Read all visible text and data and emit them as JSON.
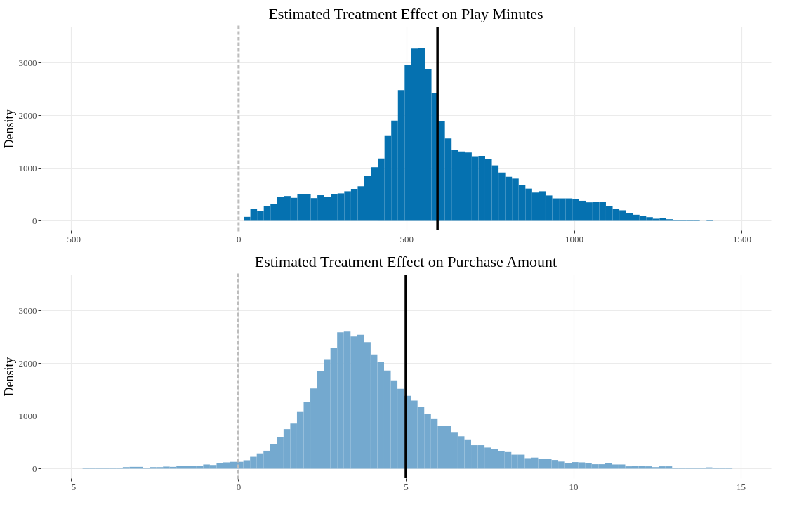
{
  "chart_data": [
    {
      "type": "histogram",
      "title": "Estimated Treatment Effect on Play Minutes",
      "ylabel": "Density",
      "color": "#0571b0",
      "bins": [
        15,
        35,
        55,
        75,
        95,
        115,
        135,
        155,
        175,
        195,
        215,
        235,
        255,
        275,
        295,
        315,
        335,
        355,
        375,
        395,
        415,
        435,
        455,
        475,
        495,
        515,
        535,
        555,
        575,
        595,
        615,
        635,
        655,
        675,
        695,
        715,
        735,
        755,
        775,
        795,
        815,
        835,
        855,
        875,
        895,
        915,
        935,
        955,
        975,
        995,
        1015,
        1035,
        1055,
        1075,
        1095,
        1115,
        1135,
        1155,
        1175,
        1195,
        1215,
        1235,
        1255,
        1275,
        1295,
        1315,
        1335,
        1355,
        1375,
        1395,
        1415
      ],
      "values": [
        75,
        220,
        185,
        275,
        320,
        450,
        470,
        435,
        510,
        510,
        430,
        485,
        455,
        500,
        520,
        560,
        605,
        655,
        850,
        1015,
        1180,
        1620,
        1900,
        2480,
        2955,
        3265,
        3280,
        2880,
        2420,
        1890,
        1560,
        1350,
        1315,
        1295,
        1225,
        1230,
        1170,
        1050,
        915,
        835,
        800,
        680,
        610,
        535,
        560,
        480,
        425,
        425,
        425,
        410,
        380,
        350,
        355,
        355,
        285,
        220,
        200,
        145,
        115,
        90,
        70,
        40,
        50,
        30,
        15,
        15,
        15,
        15,
        0,
        20
      ],
      "xlim": [
        -590,
        1587
      ],
      "xticks": [
        -500,
        0,
        500,
        1000,
        1500
      ],
      "ylim": [
        -180,
        3680
      ],
      "yticks": [
        0,
        1000,
        2000,
        3000
      ],
      "grid": true,
      "ref_lines": [
        {
          "axis": "x",
          "value": 0,
          "color": "#bdbdbd",
          "line_style": "dotted"
        },
        {
          "axis": "x",
          "value": 593,
          "color": "#000000",
          "line_style": "solid"
        }
      ]
    },
    {
      "type": "histogram",
      "title": "Estimated Treatment Effect on Purchase Amount",
      "ylabel": "Density",
      "color": "#74a9cf",
      "bins": [
        -4.65,
        -4.45,
        -4.25,
        -4.05,
        -3.85,
        -3.65,
        -3.45,
        -3.25,
        -3.05,
        -2.85,
        -2.65,
        -2.45,
        -2.25,
        -2.05,
        -1.85,
        -1.65,
        -1.45,
        -1.25,
        -1.05,
        -0.85,
        -0.65,
        -0.45,
        -0.25,
        -0.05,
        0.15,
        0.35,
        0.55,
        0.75,
        0.95,
        1.15,
        1.35,
        1.55,
        1.75,
        1.95,
        2.15,
        2.35,
        2.55,
        2.75,
        2.95,
        3.15,
        3.35,
        3.55,
        3.75,
        3.95,
        4.15,
        4.35,
        4.55,
        4.75,
        4.95,
        5.15,
        5.35,
        5.55,
        5.75,
        5.95,
        6.15,
        6.35,
        6.55,
        6.75,
        6.95,
        7.15,
        7.35,
        7.55,
        7.75,
        7.95,
        8.15,
        8.35,
        8.55,
        8.75,
        8.95,
        9.15,
        9.35,
        9.55,
        9.75,
        9.95,
        10.15,
        10.35,
        10.55,
        10.75,
        10.95,
        11.15,
        11.35,
        11.55,
        11.75,
        11.95,
        12.15,
        12.35,
        12.55,
        12.75,
        12.95,
        13.15,
        13.35,
        13.55,
        13.75,
        13.95,
        14.15,
        14.35,
        14.55,
        14.75
      ],
      "values": [
        15,
        20,
        20,
        20,
        20,
        20,
        30,
        35,
        35,
        20,
        30,
        30,
        40,
        35,
        55,
        50,
        50,
        50,
        80,
        70,
        100,
        120,
        130,
        130,
        160,
        225,
        290,
        340,
        465,
        595,
        750,
        855,
        1075,
        1260,
        1520,
        1855,
        2075,
        2290,
        2585,
        2600,
        2505,
        2540,
        2400,
        2165,
        2020,
        1860,
        1675,
        1515,
        1380,
        1290,
        1165,
        1040,
        940,
        815,
        815,
        695,
        615,
        555,
        445,
        445,
        400,
        375,
        330,
        315,
        265,
        265,
        200,
        210,
        190,
        190,
        165,
        135,
        100,
        125,
        120,
        105,
        85,
        85,
        100,
        80,
        80,
        45,
        50,
        60,
        45,
        30,
        45,
        45,
        20,
        20,
        20,
        20,
        20,
        25,
        20,
        15,
        15
      ],
      "xlim": [
        -5.9,
        15.9
      ],
      "xticks": [
        -5,
        0,
        5,
        10,
        15
      ],
      "ylim": [
        -180,
        3680
      ],
      "yticks": [
        0,
        1000,
        2000,
        3000
      ],
      "grid": true,
      "ref_lines": [
        {
          "axis": "x",
          "value": 0,
          "color": "#bdbdbd",
          "line_style": "dotted"
        },
        {
          "axis": "x",
          "value": 5,
          "color": "#000000",
          "line_style": "solid"
        }
      ]
    }
  ]
}
